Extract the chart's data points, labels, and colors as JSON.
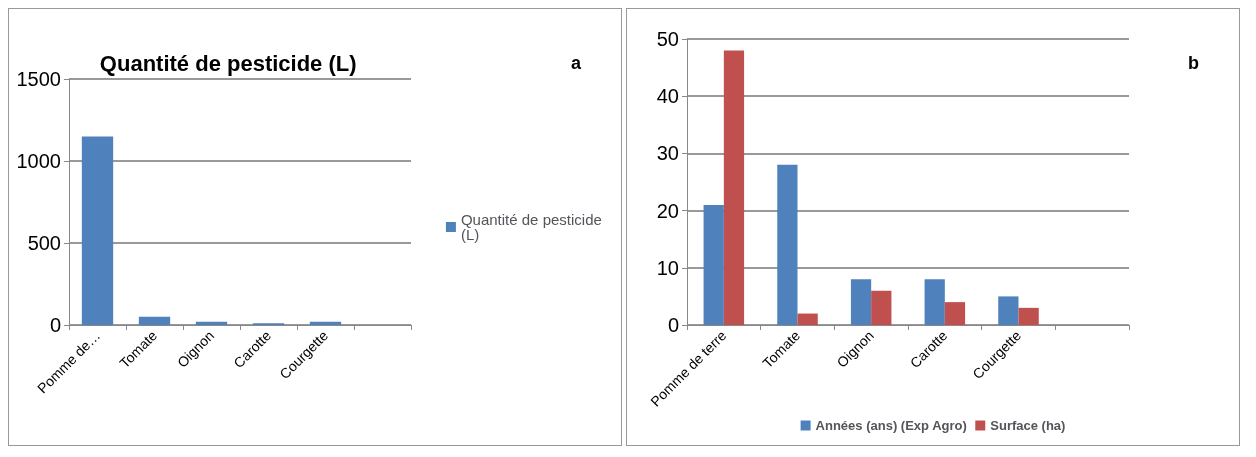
{
  "chart_data": [
    {
      "type": "bar",
      "title": "Quantité de pesticide (L)",
      "annotations": [
        "a"
      ],
      "categories": [
        "Pomme de…",
        "Tomate",
        "Oignon",
        "Carotte",
        "Courgette",
        null
      ],
      "series": [
        {
          "name": "Quantité de pesticide (L)",
          "color": "#4f81bd",
          "values": [
            1150,
            50,
            20,
            10,
            20,
            null
          ]
        }
      ],
      "ylim": [
        0,
        1500
      ],
      "yticks": [
        0,
        500,
        1000,
        1500
      ],
      "grid": "y",
      "legend": "right"
    },
    {
      "type": "bar",
      "annotations": [
        "b"
      ],
      "categories": [
        "Pomme de terre",
        "Tomate",
        "Oignon",
        "Carotte",
        "Courgette",
        null
      ],
      "series": [
        {
          "name": "Années (ans) (Exp Agro)",
          "color": "#4f81bd",
          "values": [
            21,
            28,
            8,
            8,
            5,
            null
          ]
        },
        {
          "name": "Surface (ha)",
          "color": "#c0504d",
          "values": [
            48,
            2,
            6,
            4,
            3,
            null
          ]
        }
      ],
      "ylim": [
        0,
        50
      ],
      "yticks": [
        0,
        10,
        20,
        30,
        40,
        50
      ],
      "grid": "y",
      "legend": "bottom"
    }
  ]
}
